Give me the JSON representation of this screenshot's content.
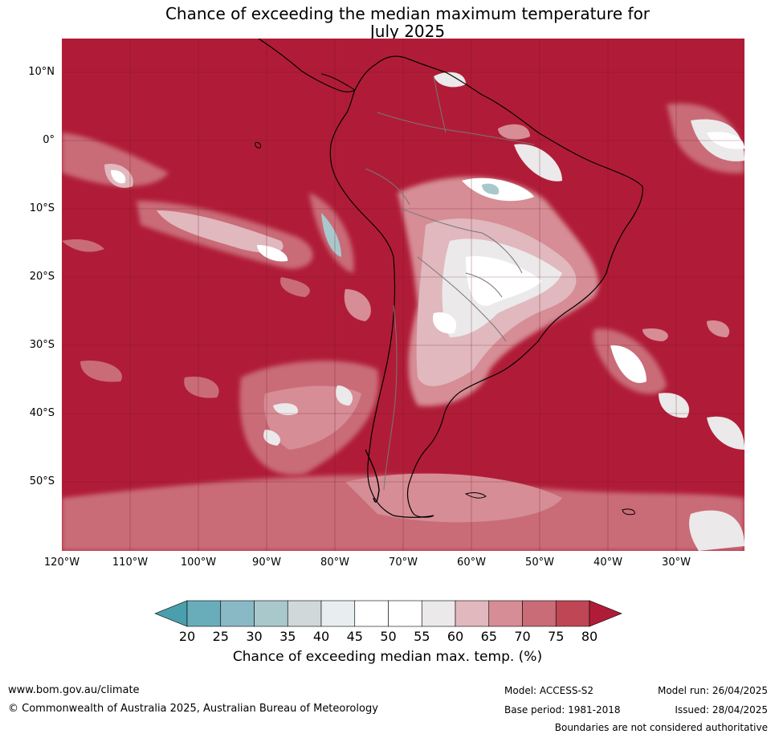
{
  "title_line1": "Chance of exceeding the median maximum temperature for",
  "title_line2": "July 2025",
  "lat_labels": [
    "10°N",
    "0°",
    "10°S",
    "20°S",
    "30°S",
    "40°S",
    "50°S"
  ],
  "lon_labels": [
    "120°W",
    "110°W",
    "100°W",
    "90°W",
    "80°W",
    "70°W",
    "60°W",
    "50°W",
    "40°W",
    "30°W"
  ],
  "colorbar": {
    "ticks": [
      "20",
      "25",
      "30",
      "35",
      "40",
      "45",
      "50",
      "55",
      "60",
      "65",
      "70",
      "75",
      "80"
    ],
    "colors": [
      "#4a9fac",
      "#6aadba",
      "#8ab9c6",
      "#a8c8cc",
      "#d1d8da",
      "#e8eef0",
      "#ffffff",
      "#ffffff",
      "#ebe9ea",
      "#e0b8bd",
      "#d68d95",
      "#c96c78",
      "#bf4654",
      "#b01c37"
    ],
    "title": "Chance of exceeding median max. temp. (%)"
  },
  "map_background_color": "#b01c37",
  "footer": {
    "url": "www.bom.gov.au/climate",
    "copyright": "© Commonwealth of Australia 2025, Australian Bureau of Meteorology",
    "model": "Model: ACCESS-S2",
    "base_period": "Base period: 1981-2018",
    "model_run": "Model run: 26/04/2025",
    "issued": "Issued: 28/04/2025",
    "disclaimer": "Boundaries are not considered authoritative"
  }
}
